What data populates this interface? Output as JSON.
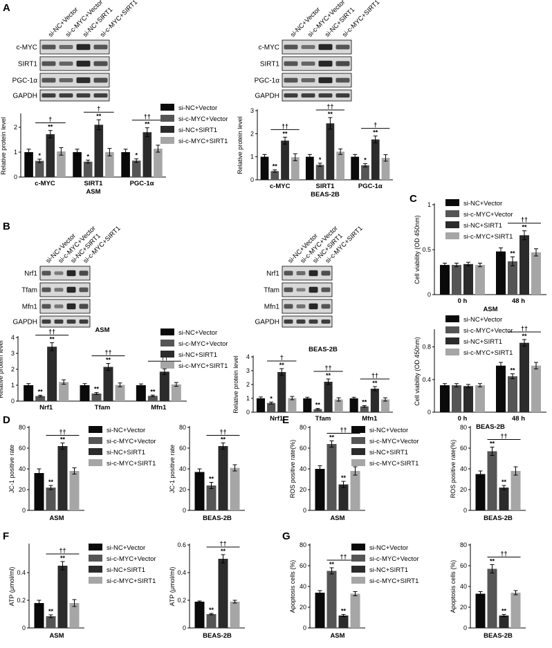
{
  "colors": {
    "c0": "#0a0a0a",
    "c1": "#555555",
    "c2": "#2b2b2b",
    "c3": "#a6a6a6",
    "blot_bg": "#d8d8d8",
    "band": "#1e1e1e"
  },
  "legend": [
    "si-NC+Vector",
    "si-c-MYC+Vector",
    "si-NC+SIRT1",
    "si-c-MYC+SIRT1"
  ],
  "panel_labels": [
    "A",
    "B",
    "C",
    "D",
    "E",
    "F",
    "G"
  ],
  "lanes": [
    "si-NC+Vector",
    "si-c-MYC+Vector",
    "si-NC+SIRT1",
    "si-c-MYC+SIRT1"
  ],
  "blots": [
    {
      "key": "A-ASM",
      "labels": [
        "c-MYC",
        "SIRT1",
        "PGC-1α",
        "GAPDH"
      ]
    },
    {
      "key": "A-BEAS",
      "labels": [
        "c-MYC",
        "SIRT1",
        "PGC-1α",
        "GAPDH"
      ]
    },
    {
      "key": "B-ASM",
      "labels": [
        "Nrf1",
        "Tfam",
        "Mfn1",
        "GAPDH"
      ]
    },
    {
      "key": "B-BEAS",
      "labels": [
        "Nrf1",
        "Tfam",
        "Mfn1",
        "GAPDH"
      ]
    }
  ],
  "chart_data": [
    {
      "id": "A-ASM",
      "type": "bar",
      "title": "",
      "xlabel": "ASM",
      "ylabel": "Relative protein level",
      "ylim": [
        0,
        2.5
      ],
      "yticks": [
        0,
        1,
        2
      ],
      "categories": [
        "c-MYC",
        "SIRT1",
        "PGC-1α"
      ],
      "series": [
        {
          "name": "si-NC+Vector",
          "values": [
            1.0,
            1.0,
            1.0
          ],
          "errors": [
            0.12,
            0.12,
            0.12
          ]
        },
        {
          "name": "si-c-MYC+Vector",
          "values": [
            0.65,
            0.62,
            0.66
          ],
          "errors": [
            0.07,
            0.06,
            0.07
          ]
        },
        {
          "name": "si-NC+SIRT1",
          "values": [
            1.72,
            2.1,
            1.8
          ],
          "errors": [
            0.15,
            0.2,
            0.18
          ]
        },
        {
          "name": "si-c-MYC+SIRT1",
          "values": [
            1.03,
            1.0,
            1.14
          ],
          "errors": [
            0.15,
            0.15,
            0.14
          ]
        }
      ],
      "annotations": [
        [
          "",
          "*",
          "**",
          ""
        ],
        [
          "",
          "*",
          "**",
          ""
        ],
        [
          "",
          "*",
          "**",
          ""
        ]
      ],
      "brackets": [
        "†",
        "†",
        "††"
      ]
    },
    {
      "id": "A-BEAS",
      "type": "bar",
      "title": "",
      "xlabel": "BEAS-2B",
      "ylabel": "Relative protein level",
      "ylim": [
        0,
        3
      ],
      "yticks": [
        0,
        1,
        2,
        3
      ],
      "categories": [
        "c-MYC",
        "SIRT1",
        "PGC-1α"
      ],
      "series": [
        {
          "name": "si-NC+Vector",
          "values": [
            1.0,
            1.0,
            1.0
          ],
          "errors": [
            0.1,
            0.1,
            0.1
          ]
        },
        {
          "name": "si-c-MYC+Vector",
          "values": [
            0.38,
            0.65,
            0.63
          ],
          "errors": [
            0.05,
            0.07,
            0.07
          ]
        },
        {
          "name": "si-NC+SIRT1",
          "values": [
            1.7,
            2.45,
            1.75
          ],
          "errors": [
            0.15,
            0.25,
            0.15
          ]
        },
        {
          "name": "si-c-MYC+SIRT1",
          "values": [
            0.98,
            1.22,
            0.95
          ],
          "errors": [
            0.15,
            0.12,
            0.14
          ]
        }
      ],
      "annotations": [
        [
          "",
          "**",
          "**",
          ""
        ],
        [
          "",
          "*",
          "**",
          ""
        ],
        [
          "",
          "*",
          "**",
          ""
        ]
      ],
      "brackets": [
        "††",
        "††",
        "†"
      ]
    },
    {
      "id": "B-ASM",
      "type": "bar",
      "title": "ASM",
      "xlabel": "",
      "ylabel": "Relative protein level",
      "ylim": [
        0,
        4
      ],
      "yticks": [
        0,
        1,
        2,
        3,
        4
      ],
      "categories": [
        "Nrf1",
        "Tfam",
        "Mfn1"
      ],
      "series": [
        {
          "name": "si-NC+Vector",
          "values": [
            1.0,
            1.0,
            1.0
          ],
          "errors": [
            0.1,
            0.1,
            0.08
          ]
        },
        {
          "name": "si-c-MYC+Vector",
          "values": [
            0.32,
            0.48,
            0.33
          ],
          "errors": [
            0.05,
            0.06,
            0.05
          ]
        },
        {
          "name": "si-NC+SIRT1",
          "values": [
            3.42,
            2.15,
            1.85
          ],
          "errors": [
            0.25,
            0.22,
            0.18
          ]
        },
        {
          "name": "si-c-MYC+SIRT1",
          "values": [
            1.2,
            1.02,
            1.05
          ],
          "errors": [
            0.14,
            0.12,
            0.12
          ]
        }
      ],
      "annotations": [
        [
          "",
          "**",
          "**",
          ""
        ],
        [
          "",
          "**",
          "**",
          ""
        ],
        [
          "",
          "**",
          "**",
          ""
        ]
      ],
      "brackets": [
        "††",
        "††",
        "††"
      ]
    },
    {
      "id": "B-BEAS",
      "type": "bar",
      "title": "BEAS-2B",
      "xlabel": "",
      "ylabel": "Relative protein level",
      "ylim": [
        0,
        4
      ],
      "yticks": [
        0,
        1,
        2,
        3,
        4
      ],
      "categories": [
        "Nrf1",
        "Tfam",
        "Mfn1"
      ],
      "series": [
        {
          "name": "si-NC+Vector",
          "values": [
            1.0,
            1.0,
            1.0
          ],
          "errors": [
            0.1,
            0.08,
            0.08
          ]
        },
        {
          "name": "si-c-MYC+Vector",
          "values": [
            0.66,
            0.22,
            0.42
          ],
          "errors": [
            0.07,
            0.05,
            0.06
          ]
        },
        {
          "name": "si-NC+SIRT1",
          "values": [
            2.9,
            2.2,
            1.7
          ],
          "errors": [
            0.25,
            0.2,
            0.15
          ]
        },
        {
          "name": "si-c-MYC+SIRT1",
          "values": [
            1.02,
            0.92,
            0.92
          ],
          "errors": [
            0.12,
            0.12,
            0.12
          ]
        }
      ],
      "annotations": [
        [
          "",
          "*",
          "**",
          ""
        ],
        [
          "",
          "**",
          "**",
          ""
        ],
        [
          "",
          "**",
          "**",
          ""
        ]
      ],
      "brackets": [
        "†",
        "††",
        "††"
      ]
    },
    {
      "id": "C-ASM",
      "type": "bar",
      "title": "",
      "xlabel": "ASM",
      "ylabel": "Cell viability (OD 450nm)",
      "ylim": [
        0,
        1.0
      ],
      "yticks": [
        0,
        0.5,
        1.0
      ],
      "categories": [
        "0 h",
        "48 h"
      ],
      "series": [
        {
          "name": "si-NC+Vector",
          "values": [
            0.33,
            0.48
          ],
          "errors": [
            0.02,
            0.04
          ]
        },
        {
          "name": "si-c-MYC+Vector",
          "values": [
            0.33,
            0.37
          ],
          "errors": [
            0.02,
            0.05
          ]
        },
        {
          "name": "si-NC+SIRT1",
          "values": [
            0.34,
            0.66
          ],
          "errors": [
            0.02,
            0.05
          ]
        },
        {
          "name": "si-c-MYC+SIRT1",
          "values": [
            0.33,
            0.47
          ],
          "errors": [
            0.02,
            0.04
          ]
        }
      ],
      "annotations": [
        [
          "",
          "",
          "",
          ""
        ],
        [
          "",
          "**",
          "**",
          ""
        ]
      ],
      "brackets": [
        "",
        "††"
      ]
    },
    {
      "id": "C-BEAS",
      "type": "bar",
      "title": "",
      "xlabel": "BEAS-2B",
      "ylabel": "Cell viability (OD 450nm)",
      "ylim": [
        0,
        1.0
      ],
      "yticks": [
        0,
        0.4,
        0.8
      ],
      "categories": [
        "0 h",
        "48 h"
      ],
      "series": [
        {
          "name": "si-NC+Vector",
          "values": [
            0.33,
            0.57
          ],
          "errors": [
            0.02,
            0.04
          ]
        },
        {
          "name": "si-c-MYC+Vector",
          "values": [
            0.33,
            0.44
          ],
          "errors": [
            0.02,
            0.03
          ]
        },
        {
          "name": "si-NC+SIRT1",
          "values": [
            0.32,
            0.85
          ],
          "errors": [
            0.02,
            0.04
          ]
        },
        {
          "name": "si-c-MYC+SIRT1",
          "values": [
            0.33,
            0.57
          ],
          "errors": [
            0.02,
            0.04
          ]
        }
      ],
      "annotations": [
        [
          "",
          "",
          "",
          ""
        ],
        [
          "",
          "**",
          "**",
          ""
        ]
      ],
      "brackets": [
        "",
        "††"
      ]
    },
    {
      "id": "D-ASM",
      "type": "bar",
      "title": "",
      "xlabel": "ASM",
      "ylabel": "JC-1 positive rate",
      "ylim": [
        0,
        80
      ],
      "yticks": [
        0,
        20,
        40,
        60,
        80
      ],
      "categories": [
        ""
      ],
      "series": [
        {
          "name": "si-NC+Vector",
          "values": [
            36
          ],
          "errors": [
            4
          ]
        },
        {
          "name": "si-c-MYC+Vector",
          "values": [
            22
          ],
          "errors": [
            2
          ]
        },
        {
          "name": "si-NC+SIRT1",
          "values": [
            62
          ],
          "errors": [
            3
          ]
        },
        {
          "name": "si-c-MYC+SIRT1",
          "values": [
            38
          ],
          "errors": [
            3
          ]
        }
      ],
      "annotations": [
        [
          "",
          "**",
          "**",
          ""
        ]
      ],
      "brackets": [
        "††"
      ]
    },
    {
      "id": "D-BEAS",
      "type": "bar",
      "title": "",
      "xlabel": "BEAS-2B",
      "ylabel": "JC-1 positive rate",
      "ylim": [
        0,
        80
      ],
      "yticks": [
        0,
        20,
        40,
        60,
        80
      ],
      "categories": [
        ""
      ],
      "series": [
        {
          "name": "si-NC+Vector",
          "values": [
            37
          ],
          "errors": [
            3
          ]
        },
        {
          "name": "si-c-MYC+Vector",
          "values": [
            24
          ],
          "errors": [
            3
          ]
        },
        {
          "name": "si-NC+SIRT1",
          "values": [
            62
          ],
          "errors": [
            3
          ]
        },
        {
          "name": "si-c-MYC+SIRT1",
          "values": [
            41
          ],
          "errors": [
            3
          ]
        }
      ],
      "annotations": [
        [
          "",
          "**",
          "**",
          ""
        ]
      ],
      "brackets": [
        "††"
      ]
    },
    {
      "id": "E-ASM",
      "type": "bar",
      "title": "",
      "xlabel": "ASM",
      "ylabel": "ROS positive rate(%)",
      "ylim": [
        0,
        80
      ],
      "yticks": [
        0,
        20,
        40,
        60,
        80
      ],
      "categories": [
        ""
      ],
      "series": [
        {
          "name": "si-NC+Vector",
          "values": [
            40
          ],
          "errors": [
            3
          ]
        },
        {
          "name": "si-c-MYC+Vector",
          "values": [
            64
          ],
          "errors": [
            3
          ]
        },
        {
          "name": "si-NC+SIRT1",
          "values": [
            25
          ],
          "errors": [
            3
          ]
        },
        {
          "name": "si-c-MYC+SIRT1",
          "values": [
            38
          ],
          "errors": [
            4
          ]
        }
      ],
      "annotations": [
        [
          "",
          "**",
          "**",
          ""
        ]
      ],
      "brackets": [
        "††"
      ]
    },
    {
      "id": "E-BEAS",
      "type": "bar",
      "title": "",
      "xlabel": "BEAS-2B",
      "ylabel": "ROS positive rate(%)",
      "ylim": [
        0,
        80
      ],
      "yticks": [
        0,
        20,
        40,
        60,
        80
      ],
      "categories": [
        ""
      ],
      "series": [
        {
          "name": "si-NC+Vector",
          "values": [
            35
          ],
          "errors": [
            3
          ]
        },
        {
          "name": "si-c-MYC+Vector",
          "values": [
            57
          ],
          "errors": [
            4
          ]
        },
        {
          "name": "si-NC+SIRT1",
          "values": [
            22
          ],
          "errors": [
            2
          ]
        },
        {
          "name": "si-c-MYC+SIRT1",
          "values": [
            38
          ],
          "errors": [
            4
          ]
        }
      ],
      "annotations": [
        [
          "",
          "**",
          "**",
          ""
        ]
      ],
      "brackets": [
        "††"
      ]
    },
    {
      "id": "F-ASM",
      "type": "bar",
      "title": "",
      "xlabel": "ASM",
      "ylabel": "ATP (μmol/ml)",
      "ylim": [
        0,
        0.6
      ],
      "yticks": [
        0.0,
        0.2,
        0.4
      ],
      "categories": [
        ""
      ],
      "series": [
        {
          "name": "si-NC+Vector",
          "values": [
            0.18
          ],
          "errors": [
            0.02
          ]
        },
        {
          "name": "si-c-MYC+Vector",
          "values": [
            0.085
          ],
          "errors": [
            0.01
          ]
        },
        {
          "name": "si-NC+SIRT1",
          "values": [
            0.45
          ],
          "errors": [
            0.03
          ]
        },
        {
          "name": "si-c-MYC+SIRT1",
          "values": [
            0.18
          ],
          "errors": [
            0.025
          ]
        }
      ],
      "annotations": [
        [
          "",
          "**",
          "**",
          ""
        ]
      ],
      "brackets": [
        "††"
      ]
    },
    {
      "id": "F-BEAS",
      "type": "bar",
      "title": "",
      "xlabel": "BEAS-2B",
      "ylabel": "ATP (μmol/ml)",
      "ylim": [
        0,
        0.6
      ],
      "yticks": [
        0.0,
        0.2,
        0.4,
        0.6
      ],
      "categories": [
        ""
      ],
      "series": [
        {
          "name": "si-NC+Vector",
          "values": [
            0.19
          ],
          "errors": [
            0.005
          ]
        },
        {
          "name": "si-c-MYC+Vector",
          "values": [
            0.1
          ],
          "errors": [
            0.005
          ]
        },
        {
          "name": "si-NC+SIRT1",
          "values": [
            0.5
          ],
          "errors": [
            0.03
          ]
        },
        {
          "name": "si-c-MYC+SIRT1",
          "values": [
            0.19
          ],
          "errors": [
            0.01
          ]
        }
      ],
      "annotations": [
        [
          "",
          "**",
          "**",
          ""
        ]
      ],
      "brackets": [
        "††"
      ]
    },
    {
      "id": "G-ASM",
      "type": "bar",
      "title": "",
      "xlabel": "ASM",
      "ylabel": "Apoptosis cells (%)",
      "ylim": [
        0,
        80
      ],
      "yticks": [
        0,
        20,
        40,
        60,
        80
      ],
      "categories": [
        ""
      ],
      "series": [
        {
          "name": "si-NC+Vector",
          "values": [
            34
          ],
          "errors": [
            2
          ]
        },
        {
          "name": "si-c-MYC+Vector",
          "values": [
            55
          ],
          "errors": [
            3
          ]
        },
        {
          "name": "si-NC+SIRT1",
          "values": [
            12
          ],
          "errors": [
            1
          ]
        },
        {
          "name": "si-c-MYC+SIRT1",
          "values": [
            33
          ],
          "errors": [
            2
          ]
        }
      ],
      "annotations": [
        [
          "",
          "**",
          "**",
          ""
        ]
      ],
      "brackets": [
        "††"
      ]
    },
    {
      "id": "G-BEAS",
      "type": "bar",
      "title": "",
      "xlabel": "BEAS-2B",
      "ylabel": "Apoptosis cells (%)",
      "ylim": [
        0,
        80
      ],
      "yticks": [
        0,
        20,
        40,
        60,
        80
      ],
      "categories": [
        ""
      ],
      "series": [
        {
          "name": "si-NC+Vector",
          "values": [
            33
          ],
          "errors": [
            2
          ]
        },
        {
          "name": "si-c-MYC+Vector",
          "values": [
            57
          ],
          "errors": [
            4
          ]
        },
        {
          "name": "si-NC+SIRT1",
          "values": [
            12
          ],
          "errors": [
            1
          ]
        },
        {
          "name": "si-c-MYC+SIRT1",
          "values": [
            34
          ],
          "errors": [
            2
          ]
        }
      ],
      "annotations": [
        [
          "",
          "**",
          "**",
          ""
        ]
      ],
      "brackets": [
        "††"
      ]
    }
  ]
}
